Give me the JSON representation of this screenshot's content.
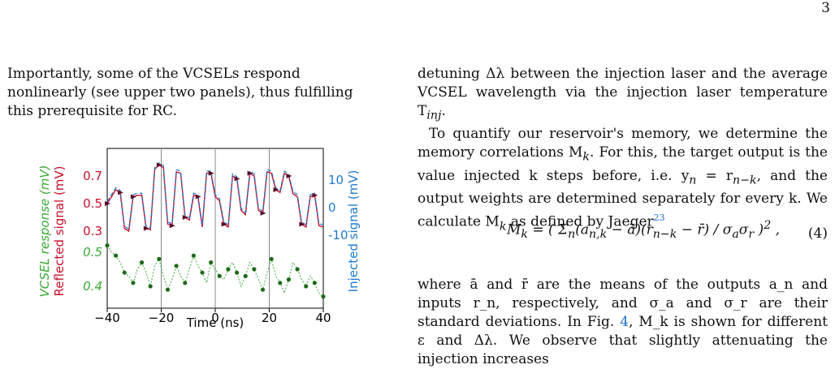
{
  "page_number": "3",
  "left_text": {
    "p1": "Importantly, some of the VCSELs respond nonlinearly (see upper two panels), thus fulfilling this prerequisite for RC."
  },
  "right_text": {
    "p1": "detuning Δλ between the injection laser and the average VCSEL wavelength via the injection laser temperature T",
    "p1_sub": "inj",
    "p1_end": ".",
    "p2a": "To quantify our reservoir's memory, we determine the memory correlations M",
    "p2b": "k",
    "p2c": ". For this, the target output is the value injected k steps before, i.e. y",
    "p2d": "n",
    "p2e": " = r",
    "p2f": "n−k",
    "p2g": ", and the output weights are determined separately for every k. We calculate M",
    "p2h": "k",
    "p2i": " as defined by Jaeger",
    "ref": "23",
    "eq_num": "(4)",
    "p3": "where ā and r̄ are the means of the outputs a_n and inputs r_n, respectively, and σ_a and σ_r are their standard deviations. In Fig. ",
    "p3_fig": "4",
    "p3_end": ", M_k is shown for different ε and Δλ. We observe that slightly attenuating the injection increases"
  },
  "figure": {
    "xlabel": "Time (ns)",
    "x_ticks": [
      "−40",
      "−20",
      "0",
      "20",
      "40"
    ],
    "left_ticks_red": [
      "0.7",
      "0.5",
      "0.3"
    ],
    "left_ticks_green": [
      "0.5",
      "0.4"
    ],
    "right_ticks": [
      "10",
      "0",
      "-10"
    ],
    "ylabel_green": "VCSEL response (mV)",
    "ylabel_red": "Reflected signal (mV)",
    "ylabel_right": "Injected signal (mV)",
    "colors": {
      "green": "#3aaa35",
      "red": "#c8102e",
      "blue": "#1f7acc",
      "navy": "#2a3f8f"
    }
  },
  "chart_data": {
    "type": "line",
    "xlim": [
      -40,
      40
    ],
    "series": [
      {
        "name": "Reflected signal",
        "y": [
          0.5,
          0.55,
          0.6,
          0.58,
          0.32,
          0.3,
          0.55,
          0.56,
          0.56,
          0.32,
          0.31,
          0.75,
          0.78,
          0.76,
          0.35,
          0.34,
          0.73,
          0.72,
          0.4,
          0.38,
          0.56,
          0.55,
          0.33,
          0.72,
          0.72,
          0.55,
          0.52,
          0.35,
          0.33,
          0.7,
          0.68,
          0.45,
          0.42,
          0.72,
          0.7,
          0.45,
          0.43,
          0.73,
          0.72,
          0.6,
          0.58,
          0.72,
          0.7,
          0.57,
          0.55,
          0.35,
          0.33,
          0.55,
          0.56,
          0.34,
          0.33
        ]
      },
      {
        "name": "VCSEL response",
        "y": [
          0.52,
          0.5,
          0.49,
          0.47,
          0.44,
          0.43,
          0.41,
          0.45,
          0.47,
          0.44,
          0.4,
          0.46,
          0.48,
          0.43,
          0.39,
          0.42,
          0.46,
          0.43,
          0.41,
          0.45,
          0.49,
          0.46,
          0.44,
          0.41,
          0.47,
          0.45,
          0.43,
          0.42,
          0.45,
          0.47,
          0.44,
          0.4,
          0.43,
          0.47,
          0.45,
          0.42,
          0.39,
          0.44,
          0.48,
          0.43,
          0.41,
          0.38,
          0.42,
          0.47,
          0.45,
          0.42,
          0.4,
          0.43,
          0.41,
          0.38,
          0.37
        ]
      }
    ]
  }
}
